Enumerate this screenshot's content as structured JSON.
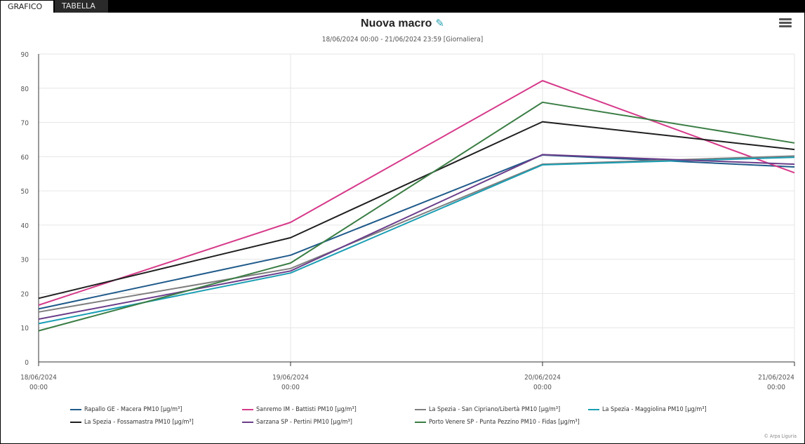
{
  "tabs": [
    {
      "label": "GRAFICO",
      "active": true
    },
    {
      "label": "TABELLA",
      "active": false
    }
  ],
  "header": {
    "title": "Nuova macro",
    "subtitle": "18/06/2024 00:00 - 21/06/2024 23:59 [Giornaliera]"
  },
  "credit": "© Arpa Liguria",
  "chart_data": {
    "type": "line",
    "title": "Nuova macro",
    "subtitle": "18/06/2024 00:00 - 21/06/2024 23:59 [Giornaliera]",
    "ylim": [
      0,
      90
    ],
    "yticks": [
      0,
      10,
      20,
      30,
      40,
      50,
      60,
      70,
      80,
      90
    ],
    "grid": true,
    "legend_position": "bottom",
    "x": [
      {
        "date": "18/06/2024",
        "time": "00:00"
      },
      {
        "date": "19/06/2024",
        "time": "00:00"
      },
      {
        "date": "20/06/2024",
        "time": "00:00"
      },
      {
        "date": "21/06/2024",
        "time": "00:00"
      }
    ],
    "series": [
      {
        "name": "Rapallo GE - Macera PM10 [µg/m³]",
        "color": "#1f5a8a",
        "values": [
          15.5,
          31.2,
          60.5,
          57.0
        ]
      },
      {
        "name": "Sanremo IM - Battisti PM10 [µg/m³]",
        "color": "#d63a8a",
        "values": [
          16.6,
          40.8,
          82.2,
          55.3
        ]
      },
      {
        "name": "La Spezia - San Cipriano/Libertà PM10 [µg/m³]",
        "color": "#7f7f7f",
        "values": [
          14.6,
          27.3,
          57.8,
          60.2
        ]
      },
      {
        "name": "La Spezia - Maggiolina PM10 [µg/m³]",
        "color": "#1a9eb3",
        "values": [
          11.2,
          26.0,
          57.6,
          59.8
        ]
      },
      {
        "name": "La Spezia - Fossamastra PM10 [µg/m³]",
        "color": "#1f1f1f",
        "values": [
          18.6,
          36.3,
          70.2,
          62.1
        ]
      },
      {
        "name": "Sarzana SP - Pertini PM10 [µg/m³]",
        "color": "#6a3d8a",
        "values": [
          12.5,
          26.6,
          60.6,
          57.8
        ]
      },
      {
        "name": "Porto Venere SP - Punta Pezzino PM10 - Fidas [µg/m³]",
        "color": "#3a7d44",
        "values": [
          9.1,
          28.9,
          75.9,
          64.0
        ]
      }
    ]
  }
}
